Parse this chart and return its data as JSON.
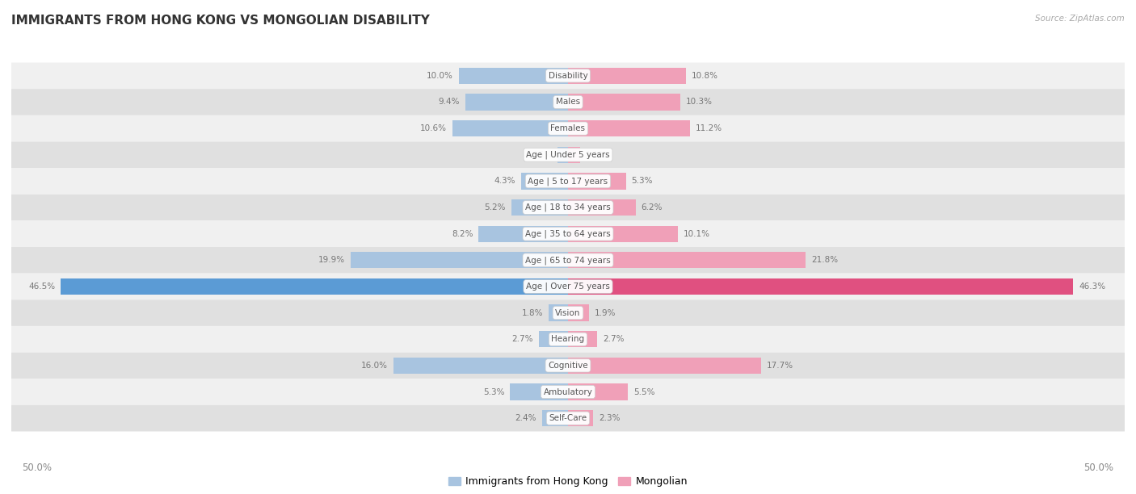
{
  "title": "IMMIGRANTS FROM HONG KONG VS MONGOLIAN DISABILITY",
  "source": "Source: ZipAtlas.com",
  "categories": [
    "Disability",
    "Males",
    "Females",
    "Age | Under 5 years",
    "Age | 5 to 17 years",
    "Age | 18 to 34 years",
    "Age | 35 to 64 years",
    "Age | 65 to 74 years",
    "Age | Over 75 years",
    "Vision",
    "Hearing",
    "Cognitive",
    "Ambulatory",
    "Self-Care"
  ],
  "hong_kong": [
    10.0,
    9.4,
    10.6,
    0.95,
    4.3,
    5.2,
    8.2,
    19.9,
    46.5,
    1.8,
    2.7,
    16.0,
    5.3,
    2.4
  ],
  "mongolian": [
    10.8,
    10.3,
    11.2,
    1.1,
    5.3,
    6.2,
    10.1,
    21.8,
    46.3,
    1.9,
    2.7,
    17.7,
    5.5,
    2.3
  ],
  "hk_color": "#a8c4e0",
  "mn_color": "#f0a0b8",
  "hk_color_strong": "#5b9bd5",
  "mn_color_strong": "#e05080",
  "bg_row_light": "#f0f0f0",
  "bg_row_dark": "#e0e0e0",
  "axis_limit": 50.0,
  "legend_hk": "Immigrants from Hong Kong",
  "legend_mn": "Mongolian",
  "label_color": "#888888",
  "value_color": "#777777"
}
